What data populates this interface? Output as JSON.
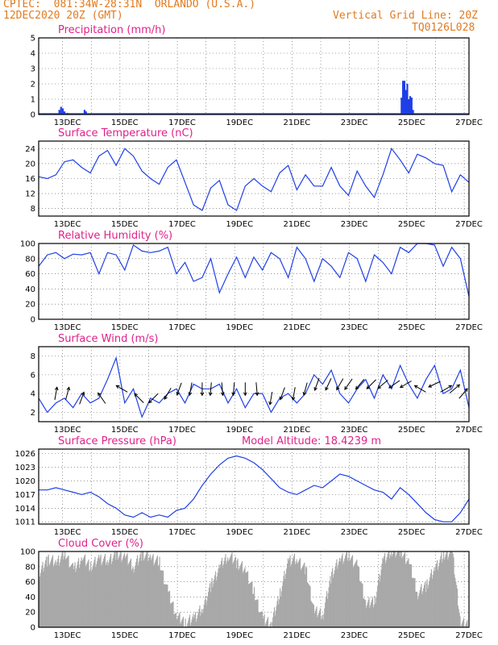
{
  "header": {
    "line1": "CPTEC:  081:34W-28:31N  ORLANDO (U.S.A.)",
    "line2": "12DEC2020 20Z (GMT)",
    "right1": "Vertical Grid Line: 20Z",
    "right2": "TQ0126L028"
  },
  "colors": {
    "header": "#e07b20",
    "title": "#e0218a",
    "line": "#1f3fe6",
    "bar": "#1f3fe6",
    "cloud": "#a8a8a8"
  },
  "x_ticks": [
    "13DEC",
    "15DEC",
    "17DEC",
    "19DEC",
    "21DEC",
    "23DEC",
    "25DEC",
    "27DEC"
  ],
  "chart_data": [
    {
      "type": "bar",
      "title": "Precipitation (mm/h)",
      "ylim": [
        0,
        5
      ],
      "yticks": [
        0,
        1,
        2,
        3,
        4,
        5
      ],
      "x_range": [
        12.0,
        27.0
      ],
      "x": [
        12.72,
        12.78,
        12.84,
        12.9,
        13.0,
        13.6,
        13.65,
        24.65,
        24.7,
        24.75,
        24.8,
        24.85,
        24.9,
        24.95,
        25.0,
        25.05
      ],
      "values": [
        0.3,
        0.5,
        0.4,
        0.2,
        0.1,
        0.3,
        0.2,
        1.1,
        2.2,
        2.2,
        1.6,
        2.0,
        1.0,
        1.2,
        1.1,
        0.3
      ]
    },
    {
      "type": "line",
      "title": "Surface Temperature (nC)",
      "ylim": [
        6,
        26
      ],
      "yticks": [
        8,
        12,
        16,
        20,
        24
      ],
      "x": [
        12.0,
        12.3,
        12.6,
        12.9,
        13.2,
        13.5,
        13.8,
        14.1,
        14.4,
        14.7,
        15.0,
        15.3,
        15.6,
        15.9,
        16.2,
        16.5,
        16.8,
        17.1,
        17.4,
        17.7,
        18.0,
        18.3,
        18.6,
        18.9,
        19.2,
        19.5,
        19.8,
        20.1,
        20.4,
        20.7,
        21.0,
        21.3,
        21.6,
        21.9,
        22.2,
        22.5,
        22.8,
        23.1,
        23.4,
        23.7,
        24.0,
        24.3,
        24.6,
        24.9,
        25.2,
        25.5,
        25.8,
        26.1,
        26.4,
        26.7,
        27.0
      ],
      "values": [
        16.5,
        16,
        17,
        20.5,
        21,
        19,
        17.5,
        22,
        23.5,
        19.5,
        24,
        22,
        18,
        16,
        14.5,
        19,
        21,
        15,
        9,
        7.5,
        13.5,
        15.5,
        9,
        7.5,
        14,
        16,
        14,
        12.5,
        17.5,
        19.5,
        13,
        17,
        14,
        14,
        19,
        14,
        11.5,
        18,
        14,
        11,
        17,
        24,
        21,
        17.5,
        22.5,
        21.5,
        20,
        19.5,
        12.5,
        17,
        15
      ]
    },
    {
      "type": "line",
      "title": "Relative Humidity (%)",
      "ylim": [
        0,
        100
      ],
      "yticks": [
        0,
        20,
        40,
        60,
        80,
        100
      ],
      "x": [
        12.0,
        12.3,
        12.6,
        12.9,
        13.2,
        13.5,
        13.8,
        14.1,
        14.4,
        14.7,
        15.0,
        15.3,
        15.6,
        15.9,
        16.2,
        16.5,
        16.8,
        17.1,
        17.4,
        17.7,
        18.0,
        18.3,
        18.6,
        18.9,
        19.2,
        19.5,
        19.8,
        20.1,
        20.4,
        20.7,
        21.0,
        21.3,
        21.6,
        21.9,
        22.2,
        22.5,
        22.8,
        23.1,
        23.4,
        23.7,
        24.0,
        24.3,
        24.6,
        24.9,
        25.2,
        25.5,
        25.8,
        26.1,
        26.4,
        26.7,
        27.0
      ],
      "values": [
        70,
        85,
        88,
        80,
        86,
        85,
        88,
        60,
        88,
        85,
        65,
        98,
        90,
        88,
        90,
        95,
        60,
        75,
        50,
        55,
        80,
        35,
        60,
        82,
        55,
        82,
        65,
        88,
        80,
        55,
        95,
        80,
        50,
        80,
        70,
        55,
        88,
        80,
        50,
        85,
        75,
        60,
        95,
        88,
        100,
        100,
        98,
        70,
        95,
        80,
        30
      ]
    },
    {
      "type": "line",
      "title": "Surface Wind (m/s)",
      "ylim": [
        1,
        9
      ],
      "yticks": [
        2,
        4,
        6,
        8
      ],
      "x": [
        12.0,
        12.3,
        12.6,
        12.9,
        13.2,
        13.5,
        13.8,
        14.1,
        14.4,
        14.7,
        15.0,
        15.3,
        15.6,
        15.9,
        16.2,
        16.5,
        16.8,
        17.1,
        17.4,
        17.7,
        18.0,
        18.3,
        18.6,
        18.9,
        19.2,
        19.5,
        19.8,
        20.1,
        20.4,
        20.7,
        21.0,
        21.3,
        21.6,
        21.9,
        22.2,
        22.5,
        22.8,
        23.1,
        23.4,
        23.7,
        24.0,
        24.3,
        24.6,
        24.9,
        25.2,
        25.5,
        25.8,
        26.1,
        26.4,
        26.7,
        27.0
      ],
      "values": [
        3.5,
        2,
        3,
        3.5,
        2.5,
        4,
        3,
        3.5,
        5.5,
        7.8,
        3,
        4.5,
        1.5,
        3.5,
        3,
        4,
        4.5,
        3,
        5,
        4.5,
        4.5,
        5,
        3,
        4.5,
        2.5,
        4,
        4,
        2,
        3.5,
        4,
        3,
        4,
        6,
        5,
        6.5,
        4,
        3,
        4.5,
        5.5,
        3.5,
        6,
        4.5,
        7,
        5,
        3.5,
        5.5,
        7,
        4,
        4.5,
        6.5,
        2.5
      ],
      "arrow_x": [
        12.6,
        13.0,
        13.5,
        14.2,
        14.9,
        15.5,
        16.0,
        16.5,
        16.9,
        17.3,
        17.7,
        18.0,
        18.4,
        18.8,
        19.2,
        19.6,
        20.1,
        20.5,
        20.9,
        21.3,
        21.7,
        22.1,
        22.5,
        22.8,
        23.2,
        23.6,
        24.0,
        24.4,
        24.8,
        25.3,
        25.8,
        26.2,
        26.5,
        26.8
      ],
      "arrow_dir_deg": [
        10,
        15,
        20,
        325,
        300,
        315,
        225,
        210,
        200,
        190,
        180,
        185,
        175,
        185,
        180,
        175,
        190,
        200,
        190,
        195,
        200,
        205,
        210,
        215,
        220,
        225,
        230,
        235,
        240,
        300,
        245,
        60,
        50,
        40
      ],
      "arrow_speed": [
        4,
        4,
        3.5,
        3.5,
        4.5,
        3.5,
        3.5,
        4,
        4.5,
        4.5,
        4.5,
        4.5,
        4.5,
        4.5,
        4.5,
        4.5,
        3.5,
        4,
        4,
        4.5,
        5,
        5,
        5,
        5,
        5,
        5,
        5,
        5,
        5,
        4.5,
        5,
        4.5,
        4.5,
        4
      ]
    },
    {
      "type": "line",
      "title": "Surface Pressure (hPa)",
      "subtitle": "Model Altitude: 18.4239 m",
      "ylim": [
        1010.5,
        1027
      ],
      "yticks": [
        1011,
        1014,
        1017,
        1020,
        1023,
        1026
      ],
      "x": [
        12.0,
        12.3,
        12.6,
        12.9,
        13.2,
        13.5,
        13.8,
        14.1,
        14.4,
        14.7,
        15.0,
        15.3,
        15.6,
        15.9,
        16.2,
        16.5,
        16.8,
        17.1,
        17.4,
        17.7,
        18.0,
        18.3,
        18.6,
        18.9,
        19.2,
        19.5,
        19.8,
        20.1,
        20.4,
        20.7,
        21.0,
        21.3,
        21.6,
        21.9,
        22.2,
        22.5,
        22.8,
        23.1,
        23.4,
        23.7,
        24.0,
        24.3,
        24.6,
        24.9,
        25.2,
        25.5,
        25.8,
        26.1,
        26.4,
        26.7,
        27.0
      ],
      "values": [
        1018,
        1018,
        1018.5,
        1018,
        1017.5,
        1017,
        1017.5,
        1016.5,
        1015,
        1014,
        1012.5,
        1012,
        1013,
        1012,
        1012.5,
        1012,
        1013.5,
        1014,
        1016,
        1019,
        1021.5,
        1023.5,
        1025,
        1025.5,
        1025,
        1024,
        1022.5,
        1020.5,
        1018.5,
        1017.5,
        1017,
        1018,
        1019,
        1018.5,
        1020,
        1021.5,
        1021,
        1020,
        1019,
        1018,
        1017.5,
        1016,
        1018.5,
        1017,
        1015,
        1013,
        1011.5,
        1011,
        1011,
        1013,
        1016
      ]
    },
    {
      "type": "area",
      "title": "Cloud Cover (%)",
      "ylim": [
        0,
        100
      ],
      "yticks": [
        0,
        20,
        40,
        60,
        80,
        100
      ],
      "x": [
        12.0,
        12.3,
        12.6,
        12.9,
        13.2,
        13.5,
        13.8,
        14.1,
        14.4,
        14.7,
        15.0,
        15.3,
        15.6,
        15.9,
        16.2,
        16.5,
        16.8,
        17.1,
        17.4,
        17.7,
        18.0,
        18.3,
        18.6,
        18.9,
        19.2,
        19.5,
        19.8,
        20.1,
        20.4,
        20.7,
        21.0,
        21.3,
        21.6,
        21.9,
        22.2,
        22.5,
        22.8,
        23.1,
        23.4,
        23.7,
        24.0,
        24.3,
        24.6,
        24.9,
        25.2,
        25.5,
        25.8,
        26.1,
        26.4,
        26.7,
        27.0
      ],
      "values": [
        70,
        90,
        85,
        98,
        75,
        92,
        80,
        90,
        88,
        96,
        93,
        80,
        97,
        92,
        85,
        45,
        15,
        5,
        12,
        25,
        55,
        80,
        95,
        85,
        75,
        45,
        10,
        5,
        45,
        88,
        90,
        75,
        20,
        18,
        70,
        90,
        95,
        80,
        30,
        35,
        90,
        100,
        100,
        85,
        45,
        55,
        78,
        95,
        100,
        5,
        3
      ]
    }
  ]
}
